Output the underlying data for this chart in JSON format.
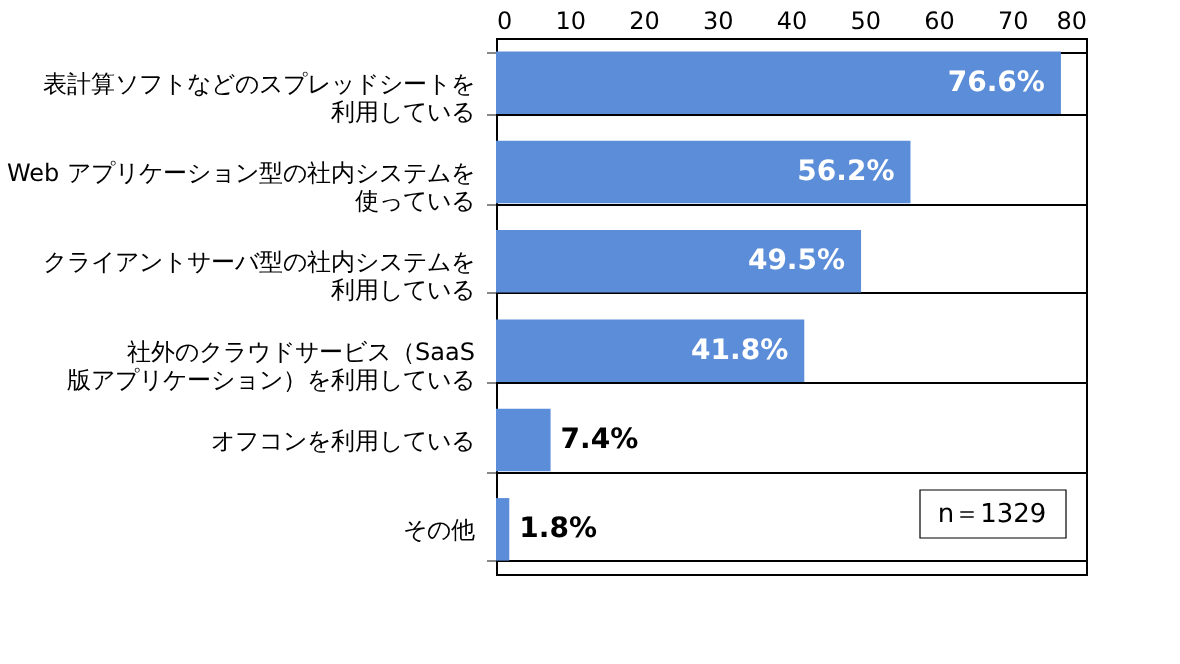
{
  "chart_data": {
    "type": "bar",
    "orientation": "horizontal",
    "categories": [
      "表計算ソフトなどのスプレッドシートを利用している",
      "Web アプリケーション型の社内システムを使っている",
      "クライアントサーバ型の社内システムを利用している",
      "社外のクラウドサービス（SaaS 版アプリケーション）を利用している",
      "オフコンを利用している",
      "その他"
    ],
    "values": [
      76.6,
      56.2,
      49.5,
      41.8,
      7.4,
      1.8
    ],
    "value_labels": [
      "76.6%",
      "56.2%",
      "49.5%",
      "41.8%",
      "7.4%",
      "1.8%"
    ],
    "color": "#5b8dd9",
    "xlim": [
      0,
      80
    ],
    "xticks": [
      0,
      10,
      20,
      30,
      40,
      50,
      60,
      70,
      80
    ],
    "grid": false,
    "annotations": [
      "n＝1329"
    ]
  }
}
